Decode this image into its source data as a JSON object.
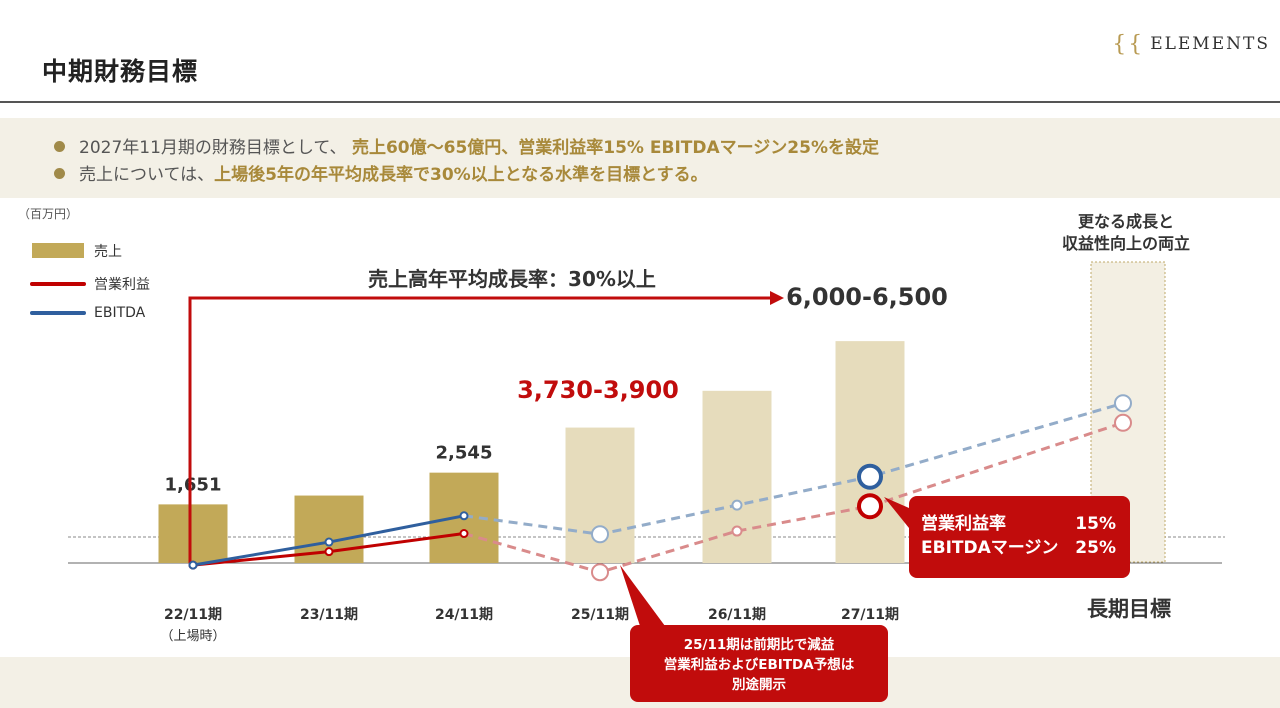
{
  "header": {
    "title": "中期財務目標",
    "logo_text": "ELEMENTS",
    "logo_mark": "{{"
  },
  "summary": {
    "bullet1_prefix": "2027年11月期の財務目標として、",
    "bullet1_highlight": "売上60億～65億円、営業利益率15% EBITDAマージン25%を設定",
    "bullet2_prefix": "売上については、",
    "bullet2_highlight": "上場後5年の年平均成長率で30%以上となる水準を目標とする。"
  },
  "colors": {
    "sales_actual": "#c2a958",
    "sales_plan": "#e6dcbc",
    "op_profit": "#c00000",
    "op_profit_dash": "#d98b8b",
    "ebitda": "#2f5f9e",
    "ebitda_dash": "#93acc9",
    "accent_red": "#c10c0c"
  },
  "chart_data": {
    "type": "bar",
    "unit_label": "（百万円）",
    "categories": [
      "22/11期",
      "23/11期",
      "24/11期",
      "25/11期",
      "26/11期",
      "27/11期",
      "長期目標"
    ],
    "category_sublabels": [
      "（上場時）",
      "",
      "",
      "",
      "",
      "",
      ""
    ],
    "series": [
      {
        "name": "売上",
        "type": "bar",
        "values": [
          1651,
          1900,
          2545,
          3815,
          4850,
          6250,
          null
        ],
        "actual": [
          true,
          true,
          true,
          false,
          false,
          false,
          false
        ]
      },
      {
        "name": "営業利益",
        "type": "line",
        "values": [
          -60,
          320,
          830,
          -260,
          900,
          1600,
          3950
        ]
      },
      {
        "name": "EBITDA",
        "type": "line",
        "values": [
          -60,
          590,
          1330,
          810,
          1630,
          2430,
          4500
        ]
      }
    ],
    "data_labels": [
      "1,651",
      "",
      "2,545",
      "3,730-3,900",
      "",
      "6,000-6,500",
      ""
    ],
    "long_term_label": "更なる成長と\n収益性向上の両立",
    "cagr_text": "売上高年平均成長率：30%以上",
    "margin_callout": [
      {
        "label": "営業利益率",
        "value": "15%"
      },
      {
        "label": "EBITDAマージン",
        "value": "25%"
      }
    ],
    "note_callout": "25/11期は前期比で減益\n営業利益およびEBITDA予想は\n別途開示"
  }
}
